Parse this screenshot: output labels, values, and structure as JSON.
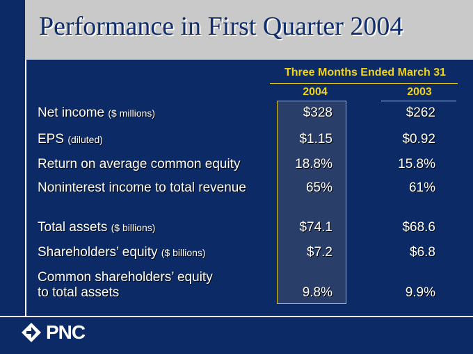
{
  "slide": {
    "title": "Performance in First Quarter 2004"
  },
  "table": {
    "period_header": "Three Months Ended March 31",
    "years": [
      "2004",
      "2003"
    ],
    "rows": [
      {
        "label": "Net income",
        "qualifier": "($ millions)",
        "v2004": "$328",
        "v2003": "$262"
      },
      {
        "label": "EPS",
        "qualifier": "(diluted)",
        "v2004": "$1.15",
        "v2003": "$0.92"
      },
      {
        "label": "Return on average common equity",
        "qualifier": "",
        "v2004": "18.8%",
        "v2003": "15.8%"
      },
      {
        "label": "Noninterest income to total revenue",
        "qualifier": "",
        "v2004": "65%",
        "v2003": "61%"
      },
      {
        "label": "Total assets",
        "qualifier": "($ billions)",
        "v2004": "$74.1",
        "v2003": "$68.6"
      },
      {
        "label": "Shareholders’ equity",
        "qualifier": "($ billions)",
        "v2004": "$7.2",
        "v2003": "$6.8"
      },
      {
        "label_line1": "Common shareholders’ equity",
        "label_line2": "to total assets",
        "v2004": "9.8%",
        "v2003": "9.9%"
      }
    ]
  },
  "logo": {
    "text": "PNC",
    "icon": "pnc-arrow-icon"
  },
  "colors": {
    "background": "#0b2a66",
    "title_band": "#c9c9c9",
    "accent": "#f2d417"
  }
}
